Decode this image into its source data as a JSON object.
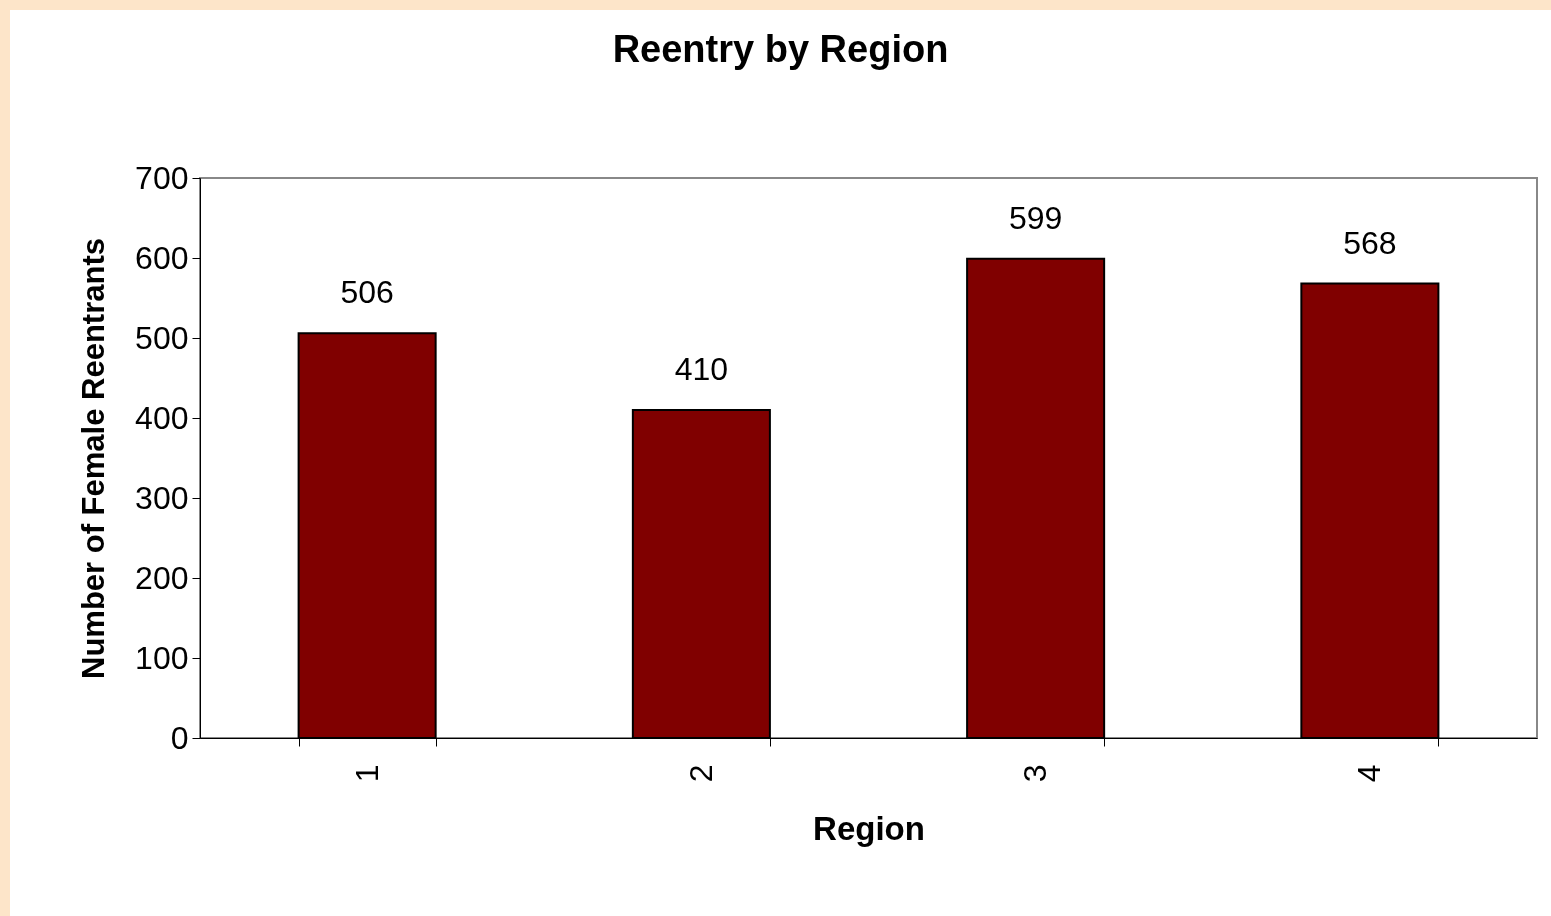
{
  "chart_data": {
    "type": "bar",
    "title": "Reentry by Region",
    "xlabel": "Region",
    "ylabel": "Number of Female Reentrants",
    "categories": [
      "1",
      "2",
      "3",
      "4"
    ],
    "values": [
      506,
      410,
      599,
      568
    ],
    "color": "#800000",
    "ylim": [
      0,
      700
    ],
    "yticks": [
      0,
      100,
      200,
      300,
      400,
      500,
      600,
      700
    ],
    "data_labels": true
  }
}
